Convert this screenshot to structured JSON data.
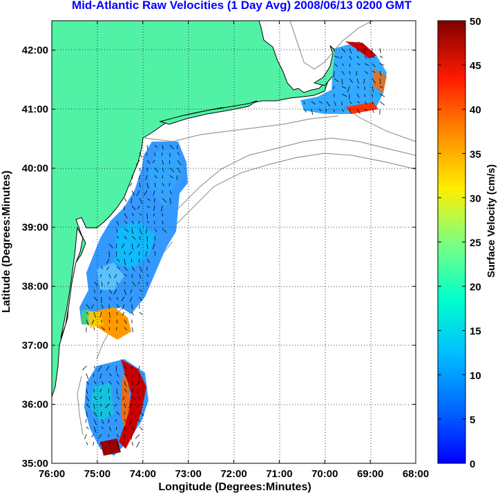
{
  "title": "Mid-Atlantic Raw Velocities (1 Day Avg) 2008/06/13 0200 GMT",
  "x_axis": {
    "label": "Longitude (Degrees:Minutes)",
    "ticks": [
      "76:00",
      "75:00",
      "74:00",
      "73:00",
      "72:00",
      "71:00",
      "70:00",
      "69:00",
      "68:00"
    ],
    "range_deg_west": [
      76,
      68
    ]
  },
  "y_axis": {
    "label": "Latitude (Degrees:Minutes)",
    "ticks": [
      "42:00",
      "41:00",
      "40:00",
      "39:00",
      "38:00",
      "37:00",
      "36:00",
      "35:00"
    ],
    "range_deg_north": [
      35,
      42.5
    ]
  },
  "colorbar": {
    "label": "Surface Velocity (cm/s)",
    "ticks": [
      "0",
      "5",
      "10",
      "15",
      "20",
      "25",
      "30",
      "35",
      "40",
      "45",
      "50"
    ],
    "range": [
      0,
      50
    ],
    "colormap": "jet"
  },
  "colors": {
    "land": "#52f2a6",
    "coast": "#000000",
    "bathymetry": "#999999",
    "grid": "#000000",
    "title": "#0000ff"
  },
  "grid": "dotted"
}
